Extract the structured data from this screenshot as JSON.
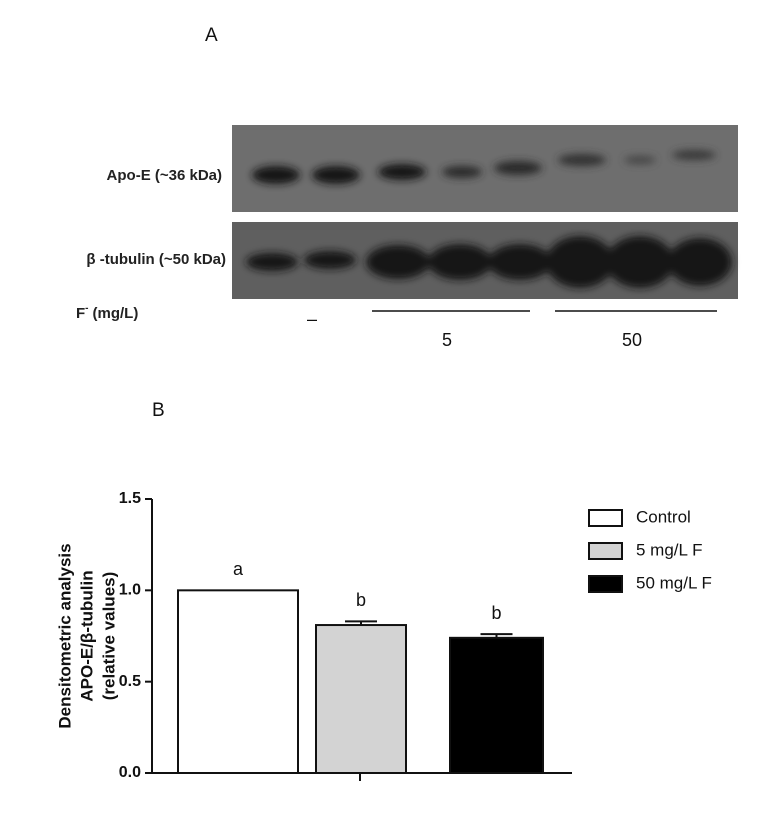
{
  "panel_a": {
    "letter": "A",
    "bands": [
      "Apo-E (~36 kDa)",
      "β -tubulin (~50 kDa)"
    ],
    "lane_label": {
      "base": "F",
      "sup": "-",
      "unit": "(mg/L)"
    },
    "groups": [
      "–",
      "5",
      "50"
    ]
  },
  "chart_data": {
    "type": "bar",
    "letter": "B",
    "y_label": [
      "Densitometric analysis",
      "APO-E/β-tubulin",
      "(relative values)"
    ],
    "series": [
      {
        "name": "Control",
        "color": "#ffffff",
        "values": [
          1.0
        ],
        "errors": [
          0
        ],
        "annotation": "a"
      },
      {
        "name": "5 mg/L F",
        "color": "#d3d3d3",
        "values": [
          0.81
        ],
        "errors": [
          0.02
        ],
        "annotation": "b"
      },
      {
        "name": "50 mg/L F",
        "color": "#000000",
        "values": [
          0.74
        ],
        "errors": [
          0.02
        ],
        "annotation": "b"
      }
    ],
    "ylim": [
      0,
      1.5
    ],
    "yticks": [
      {
        "value": 0,
        "label": "0.0"
      },
      {
        "value": 0.5,
        "label": "0.5"
      },
      {
        "value": 1,
        "label": "1.0"
      },
      {
        "value": 1.5,
        "label": "1.5"
      }
    ],
    "legend": "right"
  }
}
